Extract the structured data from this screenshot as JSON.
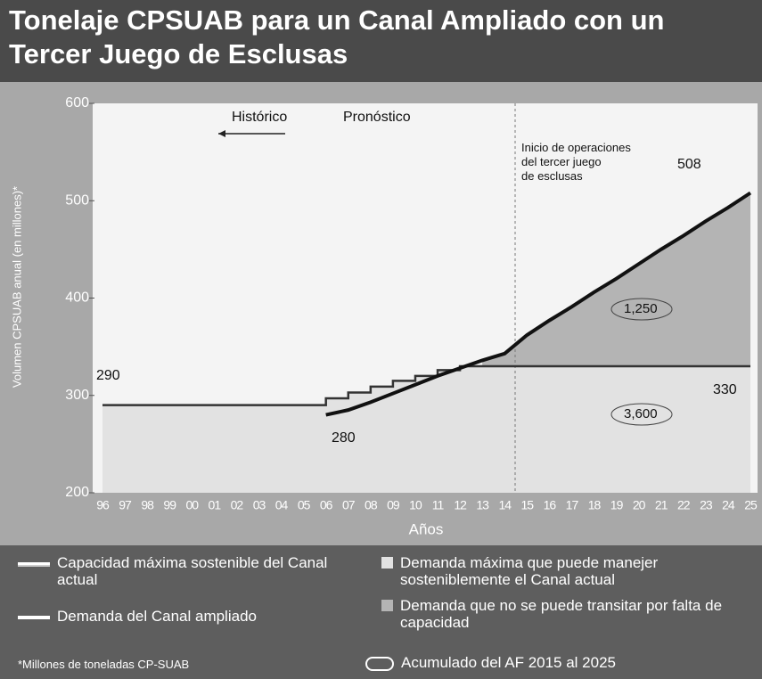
{
  "chart_data": {
    "type": "line",
    "title": "Tonelaje CPSUAB para un Canal Ampliado con un Tercer Juego de Esclusas",
    "x_label": "Años",
    "y_label": "Volumen CPSUAB anual (en millones)*",
    "categories": [
      "96",
      "97",
      "98",
      "99",
      "00",
      "01",
      "02",
      "03",
      "04",
      "05",
      "06",
      "07",
      "08",
      "09",
      "10",
      "11",
      "12",
      "13",
      "14",
      "15",
      "16",
      "17",
      "18",
      "19",
      "20",
      "21",
      "22",
      "23",
      "24",
      "25"
    ],
    "series": [
      {
        "name": "Capacidad máxima sostenible del Canal actual",
        "color": "#333333",
        "step": true,
        "values": [
          290,
          290,
          290,
          290,
          290,
          290,
          290,
          290,
          290,
          290,
          297,
          303,
          309,
          315,
          320,
          326,
          330,
          330,
          330,
          330,
          330,
          330,
          330,
          330,
          330,
          330,
          330,
          330,
          330,
          330
        ]
      },
      {
        "name": "Demanda del Canal ampliado",
        "color": "#111111",
        "step": false,
        "values": [
          null,
          null,
          null,
          null,
          null,
          null,
          null,
          null,
          null,
          null,
          280,
          285,
          293,
          302,
          311,
          320,
          328,
          336,
          343,
          362,
          377,
          391,
          406,
          420,
          435,
          450,
          464,
          479,
          493,
          508
        ]
      }
    ],
    "areas": [
      {
        "name": "Demanda máxima que puede manejer sosteniblemente el Canal actual",
        "color": "#e2e2e2"
      },
      {
        "name": "Demanda que no se puede transitar por falta de capacidad",
        "color": "#b4b4b4"
      }
    ],
    "ylim": [
      200,
      600
    ],
    "yticks": [
      200,
      300,
      400,
      500,
      600
    ],
    "annotations": [
      "Histórico",
      "Pronóstico",
      "Inicio de operaciones del tercer juego de esclusas",
      "290",
      "280",
      "330",
      "508",
      "1,250",
      "3,600"
    ],
    "footnote": "*Millones de toneladas CP-SUAB",
    "cumulative_note": "Acumulado del AF 2015 al 2025"
  }
}
